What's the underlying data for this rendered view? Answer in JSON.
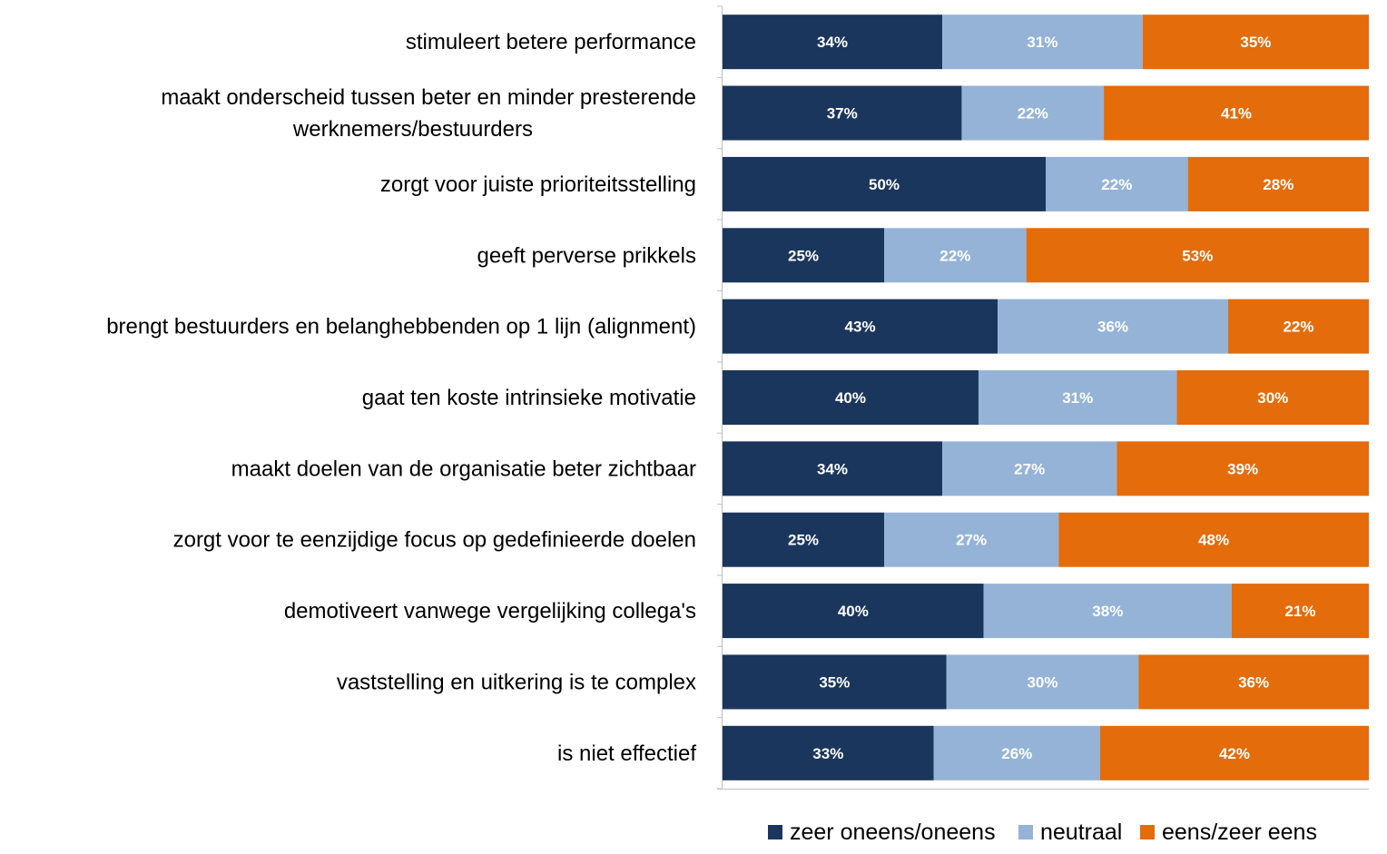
{
  "chart_data": {
    "type": "bar",
    "orientation": "horizontal",
    "stacked": true,
    "categories": [
      "stimuleert betere performance",
      "maakt onderscheid tussen beter en minder presterende werknemers/bestuurders",
      "zorgt voor juiste prioriteitsstelling",
      "geeft perverse prikkels",
      "brengt bestuurders en belanghebbenden op 1 lijn (alignment)",
      "gaat ten koste intrinsieke motivatie",
      "maakt doelen van de organisatie beter zichtbaar",
      "zorgt voor te eenzijdige focus op gedefinieerde doelen",
      "demotiveert vanwege vergelijking collega's",
      "vaststelling en uitkering is te complex",
      "is niet effectief"
    ],
    "category_lines": [
      [
        "stimuleert betere performance"
      ],
      [
        "maakt onderscheid tussen beter en minder presterende",
        "werknemers/bestuurders"
      ],
      [
        "zorgt voor juiste prioriteitsstelling"
      ],
      [
        "geeft perverse prikkels"
      ],
      [
        "brengt bestuurders en belanghebbenden op 1 lijn (alignment)"
      ],
      [
        "gaat ten koste intrinsieke motivatie"
      ],
      [
        "maakt doelen van de organisatie beter zichtbaar"
      ],
      [
        "zorgt voor te eenzijdige focus op gedefinieerde doelen"
      ],
      [
        "demotiveert vanwege vergelijking collega's"
      ],
      [
        "vaststelling en uitkering is te complex"
      ],
      [
        "is niet effectief"
      ]
    ],
    "series": [
      {
        "name": "zeer oneens/oneens",
        "color": "#1b365d",
        "values": [
          34,
          37,
          50,
          25,
          43,
          40,
          34,
          25,
          40,
          35,
          33
        ],
        "labels": [
          "34%",
          "37%",
          "50%",
          "25%",
          "43%",
          "40%",
          "34%",
          "25%",
          "40%",
          "35%",
          "33%"
        ]
      },
      {
        "name": "neutraal",
        "color": "#95b3d7",
        "values": [
          31,
          22,
          22,
          22,
          36,
          31,
          27,
          27,
          38,
          30,
          26
        ],
        "labels": [
          "31%",
          "22%",
          "22%",
          "22%",
          "36%",
          "31%",
          "27%",
          "27%",
          "38%",
          "30%",
          "26%"
        ]
      },
      {
        "name": "eens/zeer eens",
        "color": "#e46c0a",
        "values": [
          35,
          41,
          28,
          53,
          22,
          30,
          39,
          48,
          21,
          36,
          42
        ],
        "labels": [
          "35%",
          "41%",
          "28%",
          "53%",
          "22%",
          "30%",
          "39%",
          "48%",
          "21%",
          "36%",
          "42%"
        ]
      }
    ],
    "xlim": [
      0,
      100
    ],
    "legend_position": "bottom",
    "grid": false
  }
}
